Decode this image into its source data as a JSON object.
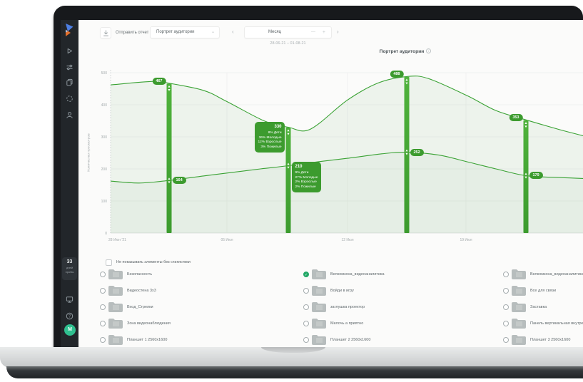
{
  "colors": {
    "accent_green": "#3c9b2e",
    "line_green": "#3aa234",
    "bar_green": "#47ad36",
    "sidebar_bg": "#22262a",
    "checked_green": "#22a866",
    "avatar_green": "#2fbf8f"
  },
  "sidebar": {
    "icons": [
      "app-logo",
      "play-icon",
      "sliders-icon",
      "pages-icon",
      "spinner-icon",
      "user-icon",
      "monitor-icon",
      "help-icon"
    ],
    "trial": {
      "days": "33",
      "line1": "дней",
      "line2": "пробы"
    },
    "avatar_initial": "М"
  },
  "toolbar": {
    "export_icon": "download-icon",
    "send_report": "Отправить отчет",
    "view_dropdown": "Портрет аудитории",
    "dropdown_chevron": "⌄",
    "prev": "‹",
    "next": "›",
    "period": "Месяц",
    "minus": "—",
    "plus": "+",
    "date_range": "28-06-21 – 01-08-21"
  },
  "chart": {
    "info_glyph": "i"
  },
  "chart_data": {
    "type": "line",
    "title": "Портрет аудитории",
    "ylabel": "Количество просмотров",
    "ylim": [
      0,
      500
    ],
    "grid": true,
    "y_ticks": [
      500,
      400,
      300,
      200,
      100,
      0
    ],
    "x_ticks": [
      {
        "label": "28 Июн '21",
        "x": 67,
        "anchor": "start",
        "grid": false
      },
      {
        "label": "05 Июл",
        "x": 233,
        "anchor": "middle",
        "grid": true
      },
      {
        "label": "12 Июл",
        "x": 402,
        "anchor": "middle",
        "grid": true
      },
      {
        "label": "19 Июл",
        "x": 568,
        "anchor": "middle",
        "grid": true
      }
    ],
    "series": [
      {
        "name": "series-1-total-views",
        "points": [
          [
            70,
            462
          ],
          [
            130,
            473
          ],
          [
            152,
            467
          ],
          [
            200,
            445
          ],
          [
            233,
            410
          ],
          [
            285,
            350
          ],
          [
            319,
            330
          ],
          [
            350,
            324
          ],
          [
            402,
            415
          ],
          [
            445,
            468
          ],
          [
            485,
            488
          ],
          [
            515,
            482
          ],
          [
            570,
            428
          ],
          [
            610,
            382
          ],
          [
            652,
            353
          ],
          [
            700,
            322
          ],
          [
            733,
            303
          ]
        ]
      },
      {
        "name": "series-2-unique-views",
        "points": [
          [
            70,
            162
          ],
          [
            110,
            156
          ],
          [
            152,
            164
          ],
          [
            200,
            178
          ],
          [
            233,
            187
          ],
          [
            280,
            200
          ],
          [
            319,
            210
          ],
          [
            360,
            222
          ],
          [
            402,
            233
          ],
          [
            450,
            247
          ],
          [
            485,
            252
          ],
          [
            530,
            243
          ],
          [
            570,
            222
          ],
          [
            610,
            200
          ],
          [
            652,
            179
          ],
          [
            700,
            173
          ],
          [
            733,
            170
          ]
        ]
      }
    ],
    "markers": [
      {
        "x": 152,
        "value": 467,
        "lower_value": 164
      },
      {
        "x": 319,
        "value": 330,
        "lower_value": 210,
        "breakdown": [
          "8% Дети",
          "36% Молодые",
          "12% Взрослые",
          "3% Пожилые"
        ],
        "lower_breakdown": [
          "9% Дети",
          "27% Молодые",
          "2% Взрослые",
          "2% Пожилые"
        ]
      },
      {
        "x": 485,
        "value": 488,
        "lower_value": 252
      },
      {
        "x": 652,
        "value": 353,
        "lower_value": 179
      }
    ]
  },
  "filter": {
    "label": "Не показывать элементы без статистики",
    "checked": false
  },
  "device_list": {
    "columns": [
      {
        "items": [
          {
            "label": "Безопасность",
            "checked": false
          },
          {
            "label": "Видеостена 3x3",
            "checked": false
          },
          {
            "label": "Вход_Стрелки",
            "checked": false
          },
          {
            "label": "Зона видеонаблюдения",
            "checked": false
          },
          {
            "label": "Планшет 1 2560x1600",
            "checked": false
          }
        ]
      },
      {
        "items": [
          {
            "label": "Велкомзона_видеоаналитика",
            "checked": true
          },
          {
            "label": "Войди в игру",
            "checked": false
          },
          {
            "label": "заглушка проектор",
            "checked": false
          },
          {
            "label": "Мелочь а приятно",
            "checked": false
          },
          {
            "label": "Планшет 2 2560x1600",
            "checked": false
          }
        ]
      },
      {
        "items": [
          {
            "label": "Велкомзона_видеоаналитика",
            "checked": false
          },
          {
            "label": "Все для связи",
            "checked": false
          },
          {
            "label": "Заставка",
            "checked": false
          },
          {
            "label": "Панель вертикальная внутренняя",
            "checked": false
          },
          {
            "label": "Планшет 3 2560x1600",
            "checked": false
          }
        ]
      }
    ]
  }
}
